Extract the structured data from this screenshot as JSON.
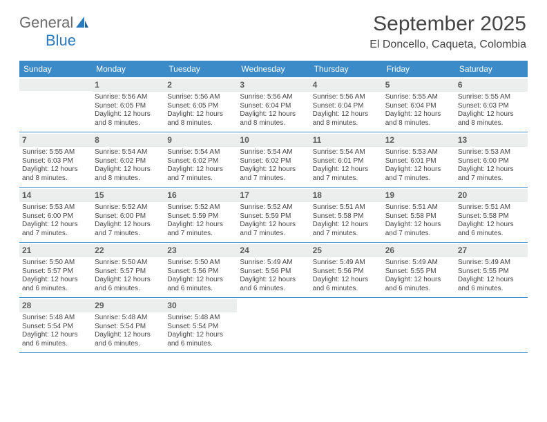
{
  "brand": {
    "part1": "General",
    "part2": "Blue"
  },
  "title": "September 2025",
  "location": "El Doncello, Caqueta, Colombia",
  "colors": {
    "header_bg": "#3b8bc9",
    "header_text": "#ffffff",
    "rule": "#3b8bc9",
    "daynum_bg": "#eceded",
    "body_text": "#454545"
  },
  "day_labels": [
    "Sunday",
    "Monday",
    "Tuesday",
    "Wednesday",
    "Thursday",
    "Friday",
    "Saturday"
  ],
  "weeks": [
    [
      {
        "n": "",
        "sr": "",
        "ss": "",
        "dl": ""
      },
      {
        "n": "1",
        "sr": "Sunrise: 5:56 AM",
        "ss": "Sunset: 6:05 PM",
        "dl": "Daylight: 12 hours and 8 minutes."
      },
      {
        "n": "2",
        "sr": "Sunrise: 5:56 AM",
        "ss": "Sunset: 6:05 PM",
        "dl": "Daylight: 12 hours and 8 minutes."
      },
      {
        "n": "3",
        "sr": "Sunrise: 5:56 AM",
        "ss": "Sunset: 6:04 PM",
        "dl": "Daylight: 12 hours and 8 minutes."
      },
      {
        "n": "4",
        "sr": "Sunrise: 5:56 AM",
        "ss": "Sunset: 6:04 PM",
        "dl": "Daylight: 12 hours and 8 minutes."
      },
      {
        "n": "5",
        "sr": "Sunrise: 5:55 AM",
        "ss": "Sunset: 6:04 PM",
        "dl": "Daylight: 12 hours and 8 minutes."
      },
      {
        "n": "6",
        "sr": "Sunrise: 5:55 AM",
        "ss": "Sunset: 6:03 PM",
        "dl": "Daylight: 12 hours and 8 minutes."
      }
    ],
    [
      {
        "n": "7",
        "sr": "Sunrise: 5:55 AM",
        "ss": "Sunset: 6:03 PM",
        "dl": "Daylight: 12 hours and 8 minutes."
      },
      {
        "n": "8",
        "sr": "Sunrise: 5:54 AM",
        "ss": "Sunset: 6:02 PM",
        "dl": "Daylight: 12 hours and 8 minutes."
      },
      {
        "n": "9",
        "sr": "Sunrise: 5:54 AM",
        "ss": "Sunset: 6:02 PM",
        "dl": "Daylight: 12 hours and 7 minutes."
      },
      {
        "n": "10",
        "sr": "Sunrise: 5:54 AM",
        "ss": "Sunset: 6:02 PM",
        "dl": "Daylight: 12 hours and 7 minutes."
      },
      {
        "n": "11",
        "sr": "Sunrise: 5:54 AM",
        "ss": "Sunset: 6:01 PM",
        "dl": "Daylight: 12 hours and 7 minutes."
      },
      {
        "n": "12",
        "sr": "Sunrise: 5:53 AM",
        "ss": "Sunset: 6:01 PM",
        "dl": "Daylight: 12 hours and 7 minutes."
      },
      {
        "n": "13",
        "sr": "Sunrise: 5:53 AM",
        "ss": "Sunset: 6:00 PM",
        "dl": "Daylight: 12 hours and 7 minutes."
      }
    ],
    [
      {
        "n": "14",
        "sr": "Sunrise: 5:53 AM",
        "ss": "Sunset: 6:00 PM",
        "dl": "Daylight: 12 hours and 7 minutes."
      },
      {
        "n": "15",
        "sr": "Sunrise: 5:52 AM",
        "ss": "Sunset: 6:00 PM",
        "dl": "Daylight: 12 hours and 7 minutes."
      },
      {
        "n": "16",
        "sr": "Sunrise: 5:52 AM",
        "ss": "Sunset: 5:59 PM",
        "dl": "Daylight: 12 hours and 7 minutes."
      },
      {
        "n": "17",
        "sr": "Sunrise: 5:52 AM",
        "ss": "Sunset: 5:59 PM",
        "dl": "Daylight: 12 hours and 7 minutes."
      },
      {
        "n": "18",
        "sr": "Sunrise: 5:51 AM",
        "ss": "Sunset: 5:58 PM",
        "dl": "Daylight: 12 hours and 7 minutes."
      },
      {
        "n": "19",
        "sr": "Sunrise: 5:51 AM",
        "ss": "Sunset: 5:58 PM",
        "dl": "Daylight: 12 hours and 7 minutes."
      },
      {
        "n": "20",
        "sr": "Sunrise: 5:51 AM",
        "ss": "Sunset: 5:58 PM",
        "dl": "Daylight: 12 hours and 6 minutes."
      }
    ],
    [
      {
        "n": "21",
        "sr": "Sunrise: 5:50 AM",
        "ss": "Sunset: 5:57 PM",
        "dl": "Daylight: 12 hours and 6 minutes."
      },
      {
        "n": "22",
        "sr": "Sunrise: 5:50 AM",
        "ss": "Sunset: 5:57 PM",
        "dl": "Daylight: 12 hours and 6 minutes."
      },
      {
        "n": "23",
        "sr": "Sunrise: 5:50 AM",
        "ss": "Sunset: 5:56 PM",
        "dl": "Daylight: 12 hours and 6 minutes."
      },
      {
        "n": "24",
        "sr": "Sunrise: 5:49 AM",
        "ss": "Sunset: 5:56 PM",
        "dl": "Daylight: 12 hours and 6 minutes."
      },
      {
        "n": "25",
        "sr": "Sunrise: 5:49 AM",
        "ss": "Sunset: 5:56 PM",
        "dl": "Daylight: 12 hours and 6 minutes."
      },
      {
        "n": "26",
        "sr": "Sunrise: 5:49 AM",
        "ss": "Sunset: 5:55 PM",
        "dl": "Daylight: 12 hours and 6 minutes."
      },
      {
        "n": "27",
        "sr": "Sunrise: 5:49 AM",
        "ss": "Sunset: 5:55 PM",
        "dl": "Daylight: 12 hours and 6 minutes."
      }
    ],
    [
      {
        "n": "28",
        "sr": "Sunrise: 5:48 AM",
        "ss": "Sunset: 5:54 PM",
        "dl": "Daylight: 12 hours and 6 minutes."
      },
      {
        "n": "29",
        "sr": "Sunrise: 5:48 AM",
        "ss": "Sunset: 5:54 PM",
        "dl": "Daylight: 12 hours and 6 minutes."
      },
      {
        "n": "30",
        "sr": "Sunrise: 5:48 AM",
        "ss": "Sunset: 5:54 PM",
        "dl": "Daylight: 12 hours and 6 minutes."
      },
      {
        "n": "",
        "sr": "",
        "ss": "",
        "dl": ""
      },
      {
        "n": "",
        "sr": "",
        "ss": "",
        "dl": ""
      },
      {
        "n": "",
        "sr": "",
        "ss": "",
        "dl": ""
      },
      {
        "n": "",
        "sr": "",
        "ss": "",
        "dl": ""
      }
    ]
  ]
}
